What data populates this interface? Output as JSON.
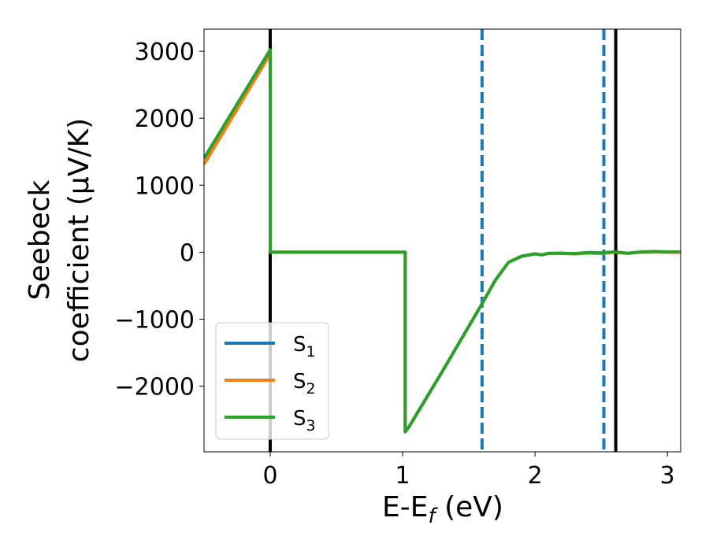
{
  "chart_data": {
    "type": "line",
    "xlabel": "E-E",
    "xlabel_sub": "f",
    "xlabel_unit": " (eV)",
    "ylabel_line1": "Seebeck",
    "ylabel_line2": "coefficient  (μV/K)",
    "xlim": [
      -0.5,
      3.1
    ],
    "ylim": [
      -2980,
      3330
    ],
    "xticks": [
      0,
      1,
      2,
      3
    ],
    "xtick_labels": [
      "0",
      "1",
      "2",
      "3"
    ],
    "yticks": [
      -2000,
      -1000,
      0,
      1000,
      2000,
      3000
    ],
    "ytick_labels": [
      "−2000",
      "−1000",
      "0",
      "1000",
      "2000",
      "3000"
    ],
    "grid": false,
    "legend_position": "lower-left",
    "vlines": [
      {
        "x": 0.0,
        "style": "solid",
        "color": "#000000"
      },
      {
        "x": 2.61,
        "style": "solid",
        "color": "#000000"
      },
      {
        "x": 1.6,
        "style": "dashed",
        "color": "#1f77b4"
      },
      {
        "x": 2.52,
        "style": "dashed",
        "color": "#1f77b4"
      }
    ],
    "series": [
      {
        "name": "S",
        "sub": "1",
        "color": "#1f77b4",
        "x": [
          -0.5,
          0.0,
          0.0,
          0.02,
          1.02,
          1.02,
          1.05,
          1.3,
          1.6,
          1.7,
          1.8,
          1.9,
          2.0,
          2.05,
          2.1,
          2.2,
          2.3,
          2.4,
          2.5,
          2.6,
          2.7,
          2.8,
          2.9,
          3.0,
          3.1
        ],
        "y": [
          1400,
          3020,
          0,
          0,
          0,
          -2680,
          -2600,
          -1780,
          -770,
          -420,
          -150,
          -60,
          -25,
          -40,
          -20,
          -15,
          -25,
          -10,
          -20,
          0,
          -15,
          0,
          5,
          0,
          0
        ]
      },
      {
        "name": "S",
        "sub": "2",
        "color": "#ff7f0e",
        "x": [
          -0.5,
          0.0,
          0.0,
          0.02,
          1.02,
          1.02,
          1.05,
          1.3,
          1.6,
          1.7,
          1.8,
          1.9,
          2.0,
          2.05,
          2.1,
          2.2,
          2.3,
          2.4,
          2.5,
          2.6,
          2.7,
          2.8,
          2.9,
          3.0,
          3.1
        ],
        "y": [
          1310,
          2960,
          0,
          0,
          0,
          -2680,
          -2600,
          -1780,
          -770,
          -420,
          -150,
          -60,
          -25,
          -40,
          -20,
          -15,
          -25,
          -10,
          -20,
          0,
          -15,
          0,
          5,
          0,
          0
        ]
      },
      {
        "name": "S",
        "sub": "3",
        "color": "#2ca02c",
        "x": [
          -0.5,
          0.0,
          0.0,
          0.02,
          1.02,
          1.02,
          1.05,
          1.3,
          1.6,
          1.7,
          1.8,
          1.9,
          2.0,
          2.05,
          2.1,
          2.2,
          2.3,
          2.4,
          2.5,
          2.6,
          2.7,
          2.8,
          2.9,
          3.0,
          3.1
        ],
        "y": [
          1400,
          3020,
          0,
          0,
          0,
          -2680,
          -2600,
          -1780,
          -770,
          -420,
          -150,
          -60,
          -25,
          -40,
          -15,
          -15,
          -20,
          -5,
          -10,
          5,
          -15,
          5,
          10,
          5,
          5
        ]
      }
    ]
  }
}
